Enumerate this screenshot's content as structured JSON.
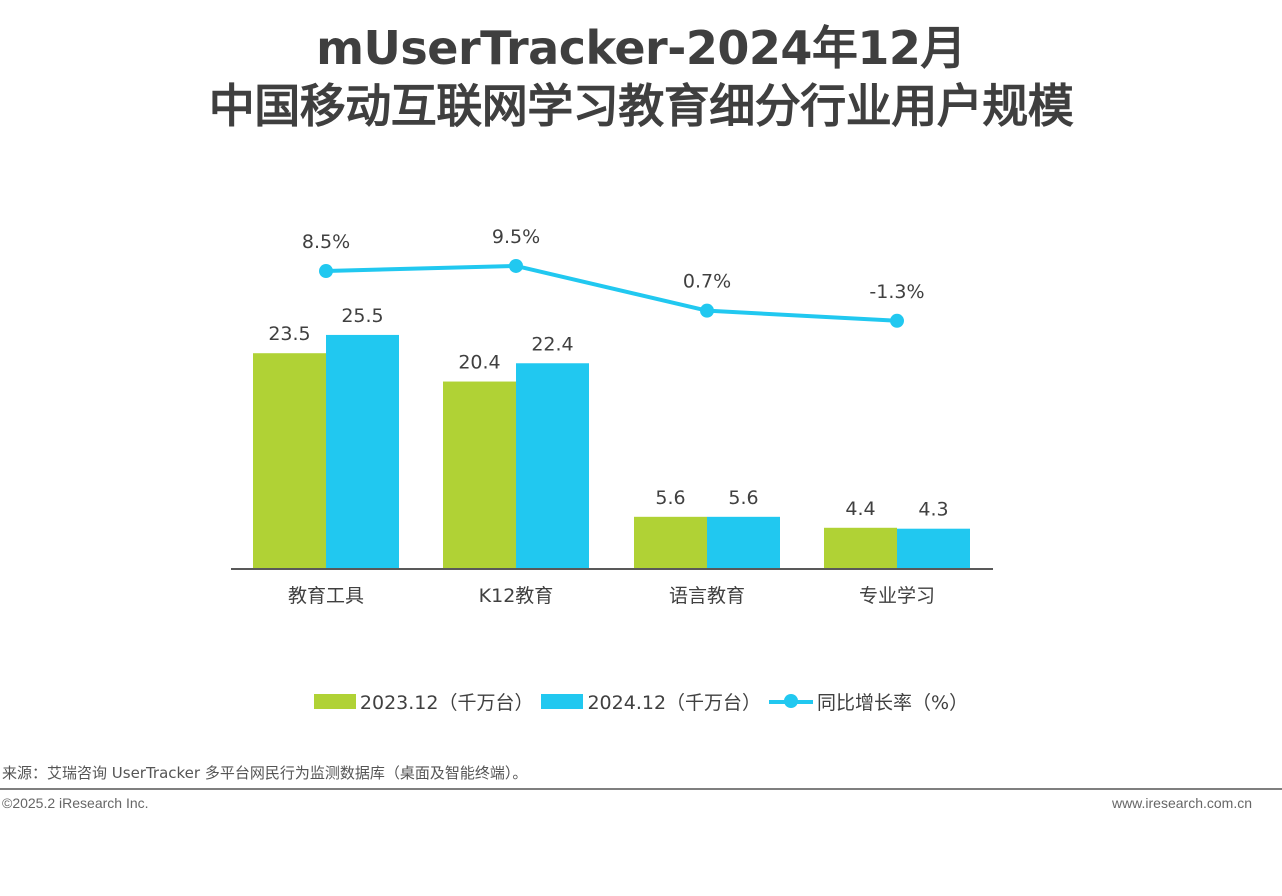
{
  "title_line1": "mUserTracker-2024年12月",
  "title_line2": "中国移动互联网学习教育细分行业用户规模",
  "colors": {
    "series1": "#b0d235",
    "series2": "#21c8f0",
    "growth": "#21c8f0",
    "axis": "#595959"
  },
  "legend": {
    "series1": "2023.12（千万台）",
    "series2": "2024.12（千万台）",
    "growth": "同比增长率（%）"
  },
  "chart_data": {
    "type": "bar",
    "categories": [
      "教育工具",
      "K12教育",
      "语言教育",
      "专业学习"
    ],
    "series": [
      {
        "name": "2023.12（千万台）",
        "values": [
          23.5,
          20.4,
          5.6,
          4.4
        ]
      },
      {
        "name": "2024.12（千万台）",
        "values": [
          25.5,
          22.4,
          5.6,
          4.3
        ]
      }
    ],
    "line_series": {
      "name": "同比增长率（%）",
      "values": [
        8.5,
        9.5,
        0.7,
        -1.3
      ],
      "labels": [
        "8.5%",
        "9.5%",
        "0.7%",
        "-1.3%"
      ]
    },
    "bar_labels": [
      [
        "23.5",
        "20.4",
        "5.6",
        "4.4"
      ],
      [
        "25.5",
        "22.4",
        "5.6",
        "4.3"
      ]
    ],
    "ylim": [
      0,
      25.5
    ],
    "grid": false,
    "legend_position": "bottom"
  },
  "source": "来源：艾瑞咨询 UserTracker 多平台网民行为监测数据库（桌面及智能终端）。",
  "footer": {
    "copyright": "©2025.2 iResearch Inc.",
    "url": "www.iresearch.com.cn"
  }
}
